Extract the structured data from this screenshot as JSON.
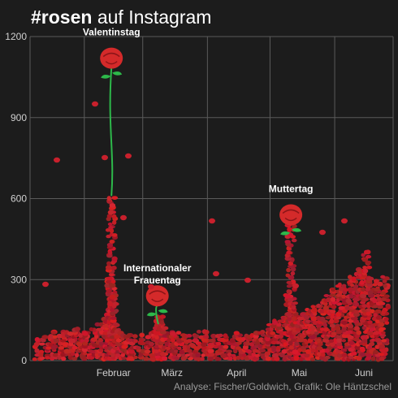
{
  "title": {
    "hashtag": "#rosen",
    "rest": "auf Instagram"
  },
  "credit": "Analyse: Fischer/Goldwich, Grafik: Ole Häntzschel",
  "colors": {
    "background": "#1c1c1c",
    "grid": "#5a5a5a",
    "rose": "#d42a2a",
    "petal": "#c8202c",
    "stem": "#2db84a"
  },
  "chart_data": {
    "type": "area",
    "title": "#rosen auf Instagram",
    "xlabel": "",
    "ylabel": "",
    "ylim": [
      0,
      1200
    ],
    "yticks": [
      0,
      300,
      600,
      900,
      1200
    ],
    "month_labels": [
      "Februar",
      "März",
      "April",
      "Mai",
      "Juni"
    ],
    "grid": true,
    "x": [
      "2014-01-10",
      "2014-01-13",
      "2014-01-16",
      "2014-01-19",
      "2014-01-22",
      "2014-01-25",
      "2014-01-28",
      "2014-01-31",
      "2014-02-03",
      "2014-02-06",
      "2014-02-09",
      "2014-02-12",
      "2014-02-13",
      "2014-02-14",
      "2014-02-15",
      "2014-02-16",
      "2014-02-18",
      "2014-02-21",
      "2014-02-24",
      "2014-02-27",
      "2014-03-02",
      "2014-03-05",
      "2014-03-07",
      "2014-03-08",
      "2014-03-09",
      "2014-03-11",
      "2014-03-14",
      "2014-03-17",
      "2014-03-20",
      "2014-03-23",
      "2014-03-26",
      "2014-03-29",
      "2014-04-01",
      "2014-04-04",
      "2014-04-07",
      "2014-04-10",
      "2014-04-13",
      "2014-04-16",
      "2014-04-19",
      "2014-04-22",
      "2014-04-25",
      "2014-04-28",
      "2014-05-01",
      "2014-05-04",
      "2014-05-07",
      "2014-05-10",
      "2014-05-11",
      "2014-05-12",
      "2014-05-14",
      "2014-05-17",
      "2014-05-20",
      "2014-05-23",
      "2014-05-26",
      "2014-05-29",
      "2014-06-01",
      "2014-06-04",
      "2014-06-07",
      "2014-06-10",
      "2014-06-13",
      "2014-06-16",
      "2014-06-19",
      "2014-06-22",
      "2014-06-25"
    ],
    "values": [
      90,
      95,
      100,
      105,
      110,
      115,
      120,
      115,
      110,
      125,
      140,
      180,
      320,
      610,
      250,
      140,
      110,
      100,
      100,
      95,
      100,
      105,
      120,
      150,
      160,
      120,
      110,
      105,
      100,
      100,
      100,
      105,
      105,
      100,
      95,
      100,
      100,
      105,
      100,
      100,
      110,
      115,
      140,
      150,
      170,
      250,
      560,
      230,
      170,
      180,
      195,
      210,
      230,
      250,
      270,
      290,
      300,
      320,
      340,
      410,
      320,
      300,
      310
    ],
    "annotations": [
      {
        "label": "Valentinstag",
        "x": "2014-02-14",
        "y": 1120
      },
      {
        "label": "Internationaler Frauentag",
        "x": "2014-03-08",
        "y": 240
      },
      {
        "label": "Muttertag",
        "x": "2014-05-11",
        "y": 540
      }
    ]
  }
}
